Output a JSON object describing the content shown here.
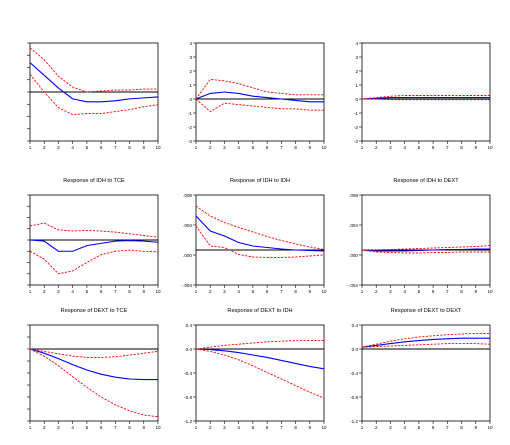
{
  "colors": {
    "response": "#0000ff",
    "band": "#ff0000",
    "zero": "#000000",
    "frame": "#000000",
    "tick_text": "#000000"
  },
  "chart_data": [
    {
      "type": "line",
      "title": "",
      "xlabel": "",
      "ylabel": "",
      "x": [
        1,
        2,
        3,
        4,
        5,
        6,
        7,
        8,
        9,
        10
      ],
      "xticks": [
        "1",
        "2",
        "3",
        "4",
        "5",
        "6",
        "7",
        "8",
        "9",
        "10"
      ],
      "ylim": [
        -5,
        5
      ],
      "yticks": [],
      "grid": false,
      "legend": "none",
      "series": [
        {
          "role": "response",
          "values": [
            3.0,
            1.7,
            0.4,
            -0.7,
            -1.0,
            -1.0,
            -0.9,
            -0.7,
            -0.6,
            -0.5
          ]
        },
        {
          "role": "upper",
          "values": [
            4.5,
            3.3,
            1.6,
            0.5,
            0.0,
            0.1,
            0.2,
            0.2,
            0.3,
            0.3
          ]
        },
        {
          "role": "lower",
          "values": [
            1.8,
            0.0,
            -1.6,
            -2.3,
            -2.2,
            -2.2,
            -2.0,
            -1.8,
            -1.5,
            -1.3
          ]
        }
      ]
    },
    {
      "type": "line",
      "title": "",
      "xlabel": "",
      "ylabel": "",
      "x": [
        1,
        2,
        3,
        4,
        5,
        6,
        7,
        8,
        9,
        10
      ],
      "xticks": [
        "1",
        "2",
        "3",
        "4",
        "5",
        "6",
        "7",
        "8",
        "9",
        "10"
      ],
      "ylim": [
        -3,
        4
      ],
      "yticks": [
        "4",
        "3",
        "2",
        "1",
        "0",
        "-1",
        "-2",
        "-3"
      ],
      "grid": false,
      "legend": "none",
      "series": [
        {
          "role": "response",
          "values": [
            0.0,
            0.4,
            0.5,
            0.4,
            0.2,
            0.1,
            0.0,
            -0.1,
            -0.2,
            -0.2
          ]
        },
        {
          "role": "upper",
          "values": [
            0.0,
            1.4,
            1.3,
            1.1,
            0.8,
            0.5,
            0.4,
            0.3,
            0.3,
            0.3
          ]
        },
        {
          "role": "lower",
          "values": [
            0.0,
            -0.9,
            -0.3,
            -0.4,
            -0.5,
            -0.6,
            -0.7,
            -0.7,
            -0.8,
            -0.8
          ]
        }
      ]
    },
    {
      "type": "line",
      "title": "",
      "xlabel": "",
      "ylabel": "",
      "x": [
        1,
        2,
        3,
        4,
        5,
        6,
        7,
        8,
        9,
        10
      ],
      "xticks": [
        "1",
        "2",
        "3",
        "4",
        "5",
        "6",
        "7",
        "8",
        "9",
        "10"
      ],
      "ylim": [
        -3,
        4
      ],
      "yticks": [
        "4",
        "3",
        "2",
        "1",
        "0",
        "-1",
        "-2",
        "-3"
      ],
      "grid": false,
      "legend": "none",
      "series": [
        {
          "role": "response",
          "values": [
            0.0,
            0.05,
            0.1,
            0.1,
            0.1,
            0.1,
            0.1,
            0.1,
            0.1,
            0.1
          ]
        },
        {
          "role": "upper",
          "values": [
            0.0,
            0.1,
            0.2,
            0.25,
            0.25,
            0.25,
            0.25,
            0.25,
            0.25,
            0.25
          ]
        },
        {
          "role": "lower",
          "values": [
            0.0,
            0.0,
            -0.05,
            -0.05,
            -0.05,
            -0.05,
            -0.05,
            -0.05,
            -0.05,
            -0.05
          ]
        }
      ]
    },
    {
      "type": "line",
      "title": "Response of IDH to TCE",
      "xlabel": "",
      "ylabel": "",
      "x": [
        1,
        2,
        3,
        4,
        5,
        6,
        7,
        8,
        9,
        10
      ],
      "xticks": [
        "1",
        "2",
        "3",
        "4",
        "5",
        "6",
        "7",
        "8",
        "9",
        "10"
      ],
      "ylim": [
        -0.008,
        0.008
      ],
      "yticks": [],
      "grid": false,
      "legend": "none",
      "series": [
        {
          "role": "response",
          "values": [
            0.0,
            -0.0002,
            -0.002,
            -0.002,
            -0.001,
            -0.0006,
            -0.0002,
            -0.0001,
            -0.0002,
            -0.0004
          ]
        },
        {
          "role": "upper",
          "values": [
            0.0025,
            0.003,
            0.0018,
            0.0016,
            0.0017,
            0.0016,
            0.0014,
            0.0011,
            0.0008,
            0.0005
          ]
        },
        {
          "role": "lower",
          "values": [
            -0.002,
            -0.0034,
            -0.006,
            -0.0055,
            -0.004,
            -0.0026,
            -0.002,
            -0.0018,
            -0.002,
            -0.0021
          ]
        }
      ]
    },
    {
      "type": "line",
      "title": "Response of IDH to IDH",
      "xlabel": "",
      "ylabel": "",
      "x": [
        1,
        2,
        3,
        4,
        5,
        6,
        7,
        8,
        9,
        10
      ],
      "xticks": [
        "1",
        "2",
        "3",
        "4",
        "5",
        "6",
        "7",
        "8",
        "9",
        "10"
      ],
      "ylim": [
        -0.007,
        0.011
      ],
      "yticks": [
        ".008",
        ".004",
        ".000",
        "-.004"
      ],
      "grid": false,
      "legend": "none",
      "series": [
        {
          "role": "response",
          "values": [
            0.0068,
            0.0038,
            0.0028,
            0.0015,
            0.0008,
            0.0005,
            0.0002,
            0.0,
            -0.0001,
            -0.0002
          ]
        },
        {
          "role": "upper",
          "values": [
            0.0088,
            0.0068,
            0.0055,
            0.0045,
            0.0036,
            0.0027,
            0.0019,
            0.0012,
            0.0006,
            0.0001
          ]
        },
        {
          "role": "lower",
          "values": [
            0.0048,
            0.0008,
            0.0005,
            -0.0009,
            -0.0014,
            -0.0015,
            -0.0015,
            -0.0014,
            -0.0012,
            -0.001
          ]
        }
      ]
    },
    {
      "type": "line",
      "title": "Response of IDH to DEXT",
      "xlabel": "",
      "ylabel": "",
      "x": [
        1,
        2,
        3,
        4,
        5,
        6,
        7,
        8,
        9,
        10
      ],
      "xticks": [
        "1",
        "2",
        "3",
        "4",
        "5",
        "6",
        "7",
        "8",
        "9",
        "10"
      ],
      "ylim": [
        -0.007,
        0.011
      ],
      "yticks": [
        ".008",
        ".004",
        ".000",
        "-.004"
      ],
      "grid": false,
      "legend": "none",
      "series": [
        {
          "role": "response",
          "values": [
            0.0,
            -0.0002,
            -0.0002,
            -0.0002,
            -0.0001,
            0.0,
            0.0001,
            0.0001,
            0.0002,
            0.0002
          ]
        },
        {
          "role": "upper",
          "values": [
            0.0,
            0.0,
            0.0001,
            0.0002,
            0.0003,
            0.0004,
            0.0005,
            0.0006,
            0.0007,
            0.0009
          ]
        },
        {
          "role": "lower",
          "values": [
            0.0,
            -0.0004,
            -0.0005,
            -0.0006,
            -0.0006,
            -0.0005,
            -0.0005,
            -0.0004,
            -0.0004,
            -0.0004
          ]
        }
      ]
    },
    {
      "type": "line",
      "title": "Response of DEXT to TCE",
      "xlabel": "",
      "ylabel": "",
      "x": [
        1,
        2,
        3,
        4,
        5,
        6,
        7,
        8,
        9,
        10
      ],
      "xticks": [
        "1",
        "2",
        "3",
        "4",
        "5",
        "6",
        "7",
        "8",
        "9",
        "10"
      ],
      "ylim": [
        -1.2,
        0.4
      ],
      "yticks": [],
      "grid": false,
      "legend": "none",
      "series": [
        {
          "role": "response",
          "values": [
            0.0,
            -0.07,
            -0.16,
            -0.26,
            -0.35,
            -0.42,
            -0.47,
            -0.5,
            -0.51,
            -0.51
          ]
        },
        {
          "role": "upper",
          "values": [
            0.0,
            -0.04,
            -0.08,
            -0.12,
            -0.14,
            -0.14,
            -0.13,
            -0.1,
            -0.07,
            -0.04
          ]
        },
        {
          "role": "lower",
          "values": [
            0.0,
            -0.12,
            -0.28,
            -0.46,
            -0.64,
            -0.8,
            -0.93,
            -1.03,
            -1.1,
            -1.13
          ]
        }
      ]
    },
    {
      "type": "line",
      "title": "Response of DEXT to IDH",
      "xlabel": "",
      "ylabel": "",
      "x": [
        1,
        2,
        3,
        4,
        5,
        6,
        7,
        8,
        9,
        10
      ],
      "xticks": [
        "1",
        "2",
        "3",
        "4",
        "5",
        "6",
        "7",
        "8",
        "9",
        "10"
      ],
      "ylim": [
        -1.2,
        0.4
      ],
      "yticks": [
        "0.4",
        "0.0",
        "-0.4",
        "-0.8",
        "-1.2"
      ],
      "grid": false,
      "legend": "none",
      "series": [
        {
          "role": "response",
          "values": [
            0.0,
            -0.01,
            -0.03,
            -0.06,
            -0.1,
            -0.14,
            -0.19,
            -0.24,
            -0.29,
            -0.33
          ]
        },
        {
          "role": "upper",
          "values": [
            0.0,
            0.03,
            0.06,
            0.08,
            0.1,
            0.12,
            0.13,
            0.14,
            0.14,
            0.14
          ]
        },
        {
          "role": "lower",
          "values": [
            0.0,
            -0.04,
            -0.1,
            -0.18,
            -0.28,
            -0.39,
            -0.5,
            -0.61,
            -0.72,
            -0.82
          ]
        }
      ]
    },
    {
      "type": "line",
      "title": "Response of DEXT to DEXT",
      "xlabel": "",
      "ylabel": "",
      "x": [
        1,
        2,
        3,
        4,
        5,
        6,
        7,
        8,
        9,
        10
      ],
      "xticks": [
        "1",
        "2",
        "3",
        "4",
        "5",
        "6",
        "7",
        "8",
        "9",
        "10"
      ],
      "ylim": [
        -1.2,
        0.4
      ],
      "yticks": [
        "0.4",
        "0.0",
        "-0.4",
        "-0.8",
        "-1.2"
      ],
      "grid": false,
      "legend": "none",
      "series": [
        {
          "role": "response",
          "values": [
            0.03,
            0.06,
            0.09,
            0.12,
            0.14,
            0.16,
            0.17,
            0.18,
            0.18,
            0.18
          ]
        },
        {
          "role": "upper",
          "values": [
            0.03,
            0.08,
            0.13,
            0.17,
            0.2,
            0.22,
            0.24,
            0.25,
            0.26,
            0.26
          ]
        },
        {
          "role": "lower",
          "values": [
            0.03,
            0.04,
            0.05,
            0.06,
            0.07,
            0.08,
            0.09,
            0.09,
            0.09,
            0.08
          ]
        }
      ]
    }
  ]
}
